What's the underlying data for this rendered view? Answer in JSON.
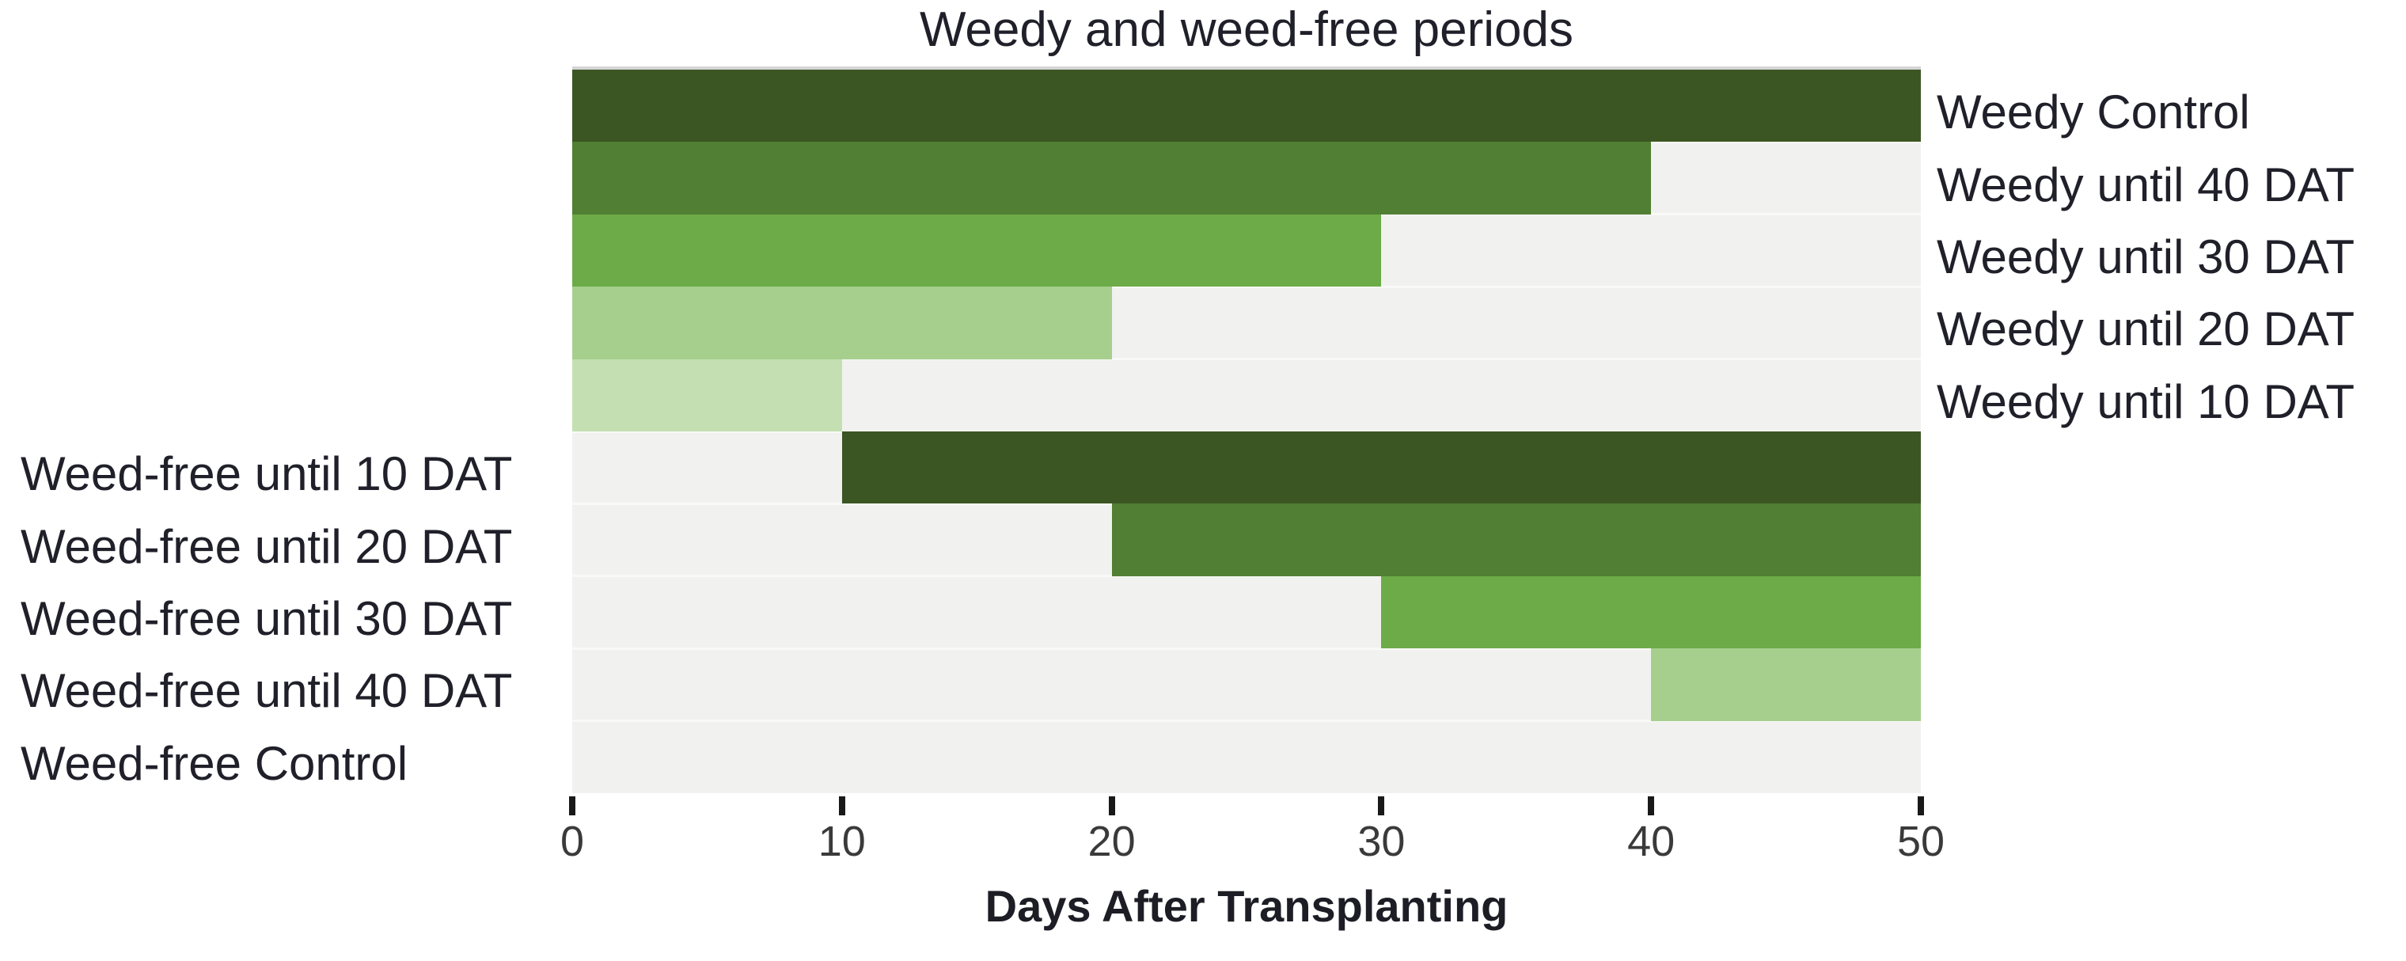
{
  "title": "Weedy and weed-free periods",
  "x_axis": {
    "label": "Days After Transplanting",
    "ticks": [
      0,
      10,
      20,
      30,
      40,
      50
    ],
    "min": 0,
    "max": 50
  },
  "colors": {
    "green_darkest": "#3b5622",
    "green_dark": "#517f33",
    "green_medium": "#6cab47",
    "green_light": "#a6cf8e",
    "green_lightest": "#c4e0b2",
    "plot_background": "#f1f1ef",
    "row_separator": "#f9f9f7",
    "plot_top_border": "#d4d4d4",
    "title_text": "#20202a",
    "label_text": "#20202a",
    "tick_text": "#3a3a3a",
    "tick_mark": "#191919"
  },
  "chart_data": {
    "type": "bar",
    "orientation": "horizontal",
    "title": "Weedy and weed-free periods",
    "xlabel": "Days After Transplanting",
    "xlim": [
      0,
      50
    ],
    "grid": false,
    "legend": false,
    "categories": [
      "Weedy Control",
      "Weedy until 40 DAT",
      "Weedy until 30 DAT",
      "Weedy until 20 DAT",
      "Weedy until 10 DAT",
      "Weed-free until 10 DAT",
      "Weed-free until 20 DAT",
      "Weed-free until 30 DAT",
      "Weed-free until 40 DAT",
      "Weed-free Control"
    ],
    "rows": [
      {
        "label": "Weedy Control",
        "label_side": "right",
        "bar_start": 0,
        "bar_end": 50,
        "color": "#3b5622"
      },
      {
        "label": "Weedy until 40 DAT",
        "label_side": "right",
        "bar_start": 0,
        "bar_end": 40,
        "color": "#517f33"
      },
      {
        "label": "Weedy until 30 DAT",
        "label_side": "right",
        "bar_start": 0,
        "bar_end": 30,
        "color": "#6cab47"
      },
      {
        "label": "Weedy until 20 DAT",
        "label_side": "right",
        "bar_start": 0,
        "bar_end": 20,
        "color": "#a6cf8e"
      },
      {
        "label": "Weedy until 10 DAT",
        "label_side": "right",
        "bar_start": 0,
        "bar_end": 10,
        "color": "#c4e0b2"
      },
      {
        "label": "Weed-free until 10 DAT",
        "label_side": "left",
        "bar_start": 10,
        "bar_end": 50,
        "color": "#3b5622"
      },
      {
        "label": "Weed-free until 20 DAT",
        "label_side": "left",
        "bar_start": 20,
        "bar_end": 50,
        "color": "#517f33"
      },
      {
        "label": "Weed-free until 30 DAT",
        "label_side": "left",
        "bar_start": 30,
        "bar_end": 50,
        "color": "#6cab47"
      },
      {
        "label": "Weed-free until 40 DAT",
        "label_side": "left",
        "bar_start": 40,
        "bar_end": 50,
        "color": "#a6cf8e"
      },
      {
        "label": "Weed-free Control",
        "label_side": "left",
        "bar_start": null,
        "bar_end": null,
        "color": null
      }
    ]
  }
}
